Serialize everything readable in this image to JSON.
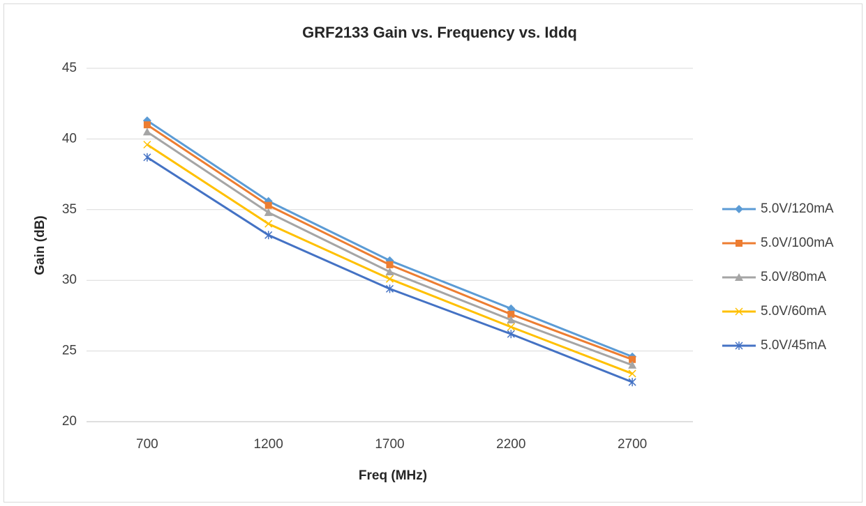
{
  "chart_data": {
    "type": "line",
    "title": "GRF2133 Gain vs. Frequency vs. Iddq",
    "x_label": "Freq (MHz)",
    "y_label": "Gain (dB)",
    "categories": [
      "700",
      "1200",
      "1700",
      "2200",
      "2700"
    ],
    "series": [
      {
        "name": "5.0V/120mA",
        "color": "#5b9bd5",
        "marker": "diamond",
        "values": [
          41.3,
          35.6,
          31.4,
          28.0,
          24.6
        ]
      },
      {
        "name": "5.0V/100mA",
        "color": "#ed7d31",
        "marker": "square",
        "values": [
          41.0,
          35.3,
          31.1,
          27.6,
          24.4
        ]
      },
      {
        "name": "5.0V/80mA",
        "color": "#a5a5a5",
        "marker": "triangle",
        "values": [
          40.5,
          34.8,
          30.6,
          27.2,
          24.0
        ]
      },
      {
        "name": "5.0V/60mA",
        "color": "#ffc000",
        "marker": "x",
        "values": [
          39.6,
          34.0,
          30.1,
          26.7,
          23.4
        ]
      },
      {
        "name": "5.0V/45mA",
        "color": "#4472c4",
        "marker": "star",
        "values": [
          38.7,
          33.2,
          29.4,
          26.2,
          22.8
        ]
      }
    ],
    "ylim": [
      20,
      45
    ],
    "yticks": [
      20,
      25,
      30,
      35,
      40,
      45
    ],
    "grid": true,
    "legend": "right"
  }
}
